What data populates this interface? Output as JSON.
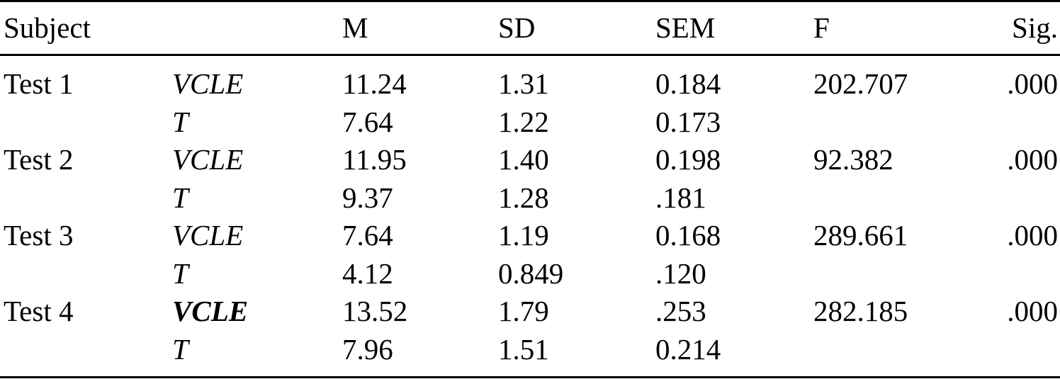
{
  "table": {
    "headers": [
      "Subject",
      "",
      "M",
      "SD",
      "SEM",
      "F",
      "Sig."
    ],
    "rows": [
      [
        "Test 1",
        "VCLE",
        "11.24",
        "1.31",
        "0.184",
        "202.707",
        ".000"
      ],
      [
        "",
        "T",
        "7.64",
        "1.22",
        "0.173",
        "",
        ""
      ],
      [
        "Test 2",
        "VCLE",
        "11.95",
        "1.40",
        "0.198",
        "92.382",
        ".000"
      ],
      [
        "",
        "T",
        "9.37",
        "1.28",
        ".181",
        "",
        ""
      ],
      [
        "Test 3",
        "VCLE",
        "7.64",
        "1.19",
        "0.168",
        "289.661",
        ".000"
      ],
      [
        "",
        "T",
        "4.12",
        "0.849",
        ".120",
        "",
        ""
      ],
      [
        "Test 4",
        "VCLE",
        "13.52",
        "1.79",
        ".253",
        "282.185",
        ".000"
      ],
      [
        "",
        "T",
        "7.96",
        "1.51",
        "0.214",
        "",
        ""
      ]
    ]
  }
}
